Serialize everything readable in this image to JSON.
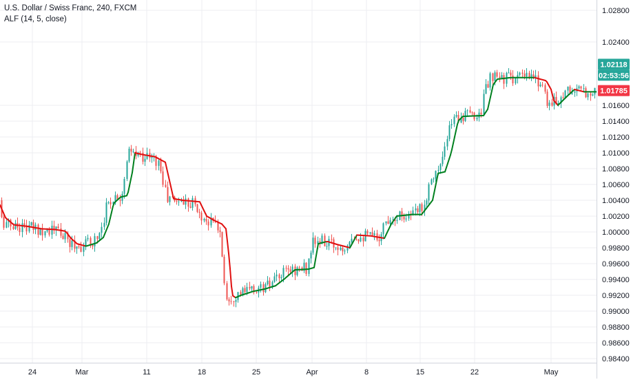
{
  "chart_data": {
    "type": "candlestick",
    "title": "U.S. Dollar / Swiss Franc, 240, FXCM",
    "indicator": "ALF (14, 5, close)",
    "ylim": [
      0.9833,
      1.0293
    ],
    "y_ticks": [
      "1.02800",
      "1.02400",
      "1.01600",
      "1.01400",
      "1.01200",
      "1.01000",
      "1.00800",
      "1.00600",
      "1.00400",
      "1.00200",
      "1.00000",
      "0.99800",
      "0.99600",
      "0.99400",
      "0.99200",
      "0.99000",
      "0.98800",
      "0.98600",
      "0.98400"
    ],
    "x_ticks": [
      "24",
      "Mar",
      "11",
      "18",
      "25",
      "Apr",
      "8",
      "15",
      "22",
      "May"
    ],
    "grid": true,
    "price_labels": [
      {
        "text": "1.02118",
        "value": 1.02118,
        "color": "#26a69a"
      },
      {
        "text": "02:53:56",
        "value": 1.0198,
        "color": "#26a69a"
      },
      {
        "text": "1.01785",
        "value": 1.01785,
        "color": "#f23645"
      }
    ],
    "up_color": "#26a69a",
    "down_color": "#ef5350",
    "alf_rising_color": "#00801f",
    "alf_falling_color": "#e01010",
    "alf_anchors": [
      [
        0,
        1.0034
      ],
      [
        8,
        1.0018
      ],
      [
        20,
        1.0009
      ],
      [
        40,
        1.0007
      ],
      [
        60,
        1.0004
      ],
      [
        80,
        1.0003
      ],
      [
        95,
        1.0001
      ],
      [
        103,
        0.9992
      ],
      [
        112,
        0.9985
      ],
      [
        125,
        0.9982
      ],
      [
        140,
        0.9986
      ],
      [
        150,
        0.9993
      ],
      [
        158,
        1.001
      ],
      [
        165,
        1.0036
      ],
      [
        175,
        1.0044
      ],
      [
        185,
        1.0046
      ],
      [
        192,
        1.0075
      ],
      [
        196,
        1.01
      ],
      [
        205,
        1.0098
      ],
      [
        225,
        1.0095
      ],
      [
        240,
        1.0088
      ],
      [
        252,
        1.0042
      ],
      [
        265,
        1.004
      ],
      [
        290,
        1.0038
      ],
      [
        300,
        1.002
      ],
      [
        310,
        1.0015
      ],
      [
        322,
        1.001
      ],
      [
        328,
        1.0004
      ],
      [
        333,
        0.9965
      ],
      [
        337,
        0.992
      ],
      [
        342,
        0.9917
      ],
      [
        350,
        0.992
      ],
      [
        368,
        0.9925
      ],
      [
        385,
        0.9928
      ],
      [
        400,
        0.9932
      ],
      [
        412,
        0.994
      ],
      [
        428,
        0.9952
      ],
      [
        448,
        0.9953
      ],
      [
        456,
        0.9955
      ],
      [
        462,
        0.9985
      ],
      [
        475,
        0.9988
      ],
      [
        490,
        0.9984
      ],
      [
        508,
        0.998
      ],
      [
        518,
        0.9996
      ],
      [
        538,
        0.9995
      ],
      [
        558,
        0.9992
      ],
      [
        568,
        1.001
      ],
      [
        576,
        1.002
      ],
      [
        598,
        1.0022
      ],
      [
        612,
        1.0022
      ],
      [
        628,
        1.004
      ],
      [
        636,
        1.0074
      ],
      [
        646,
        1.0076
      ],
      [
        655,
        1.01
      ],
      [
        665,
        1.014
      ],
      [
        672,
        1.0146
      ],
      [
        702,
        1.0147
      ],
      [
        708,
        1.0155
      ],
      [
        716,
        1.0186
      ],
      [
        722,
        1.0193
      ],
      [
        742,
        1.0195
      ],
      [
        776,
        1.0195
      ],
      [
        793,
        1.0191
      ],
      [
        800,
        1.018
      ],
      [
        804,
        1.0166
      ],
      [
        810,
        1.016
      ],
      [
        824,
        1.0172
      ],
      [
        834,
        1.018
      ],
      [
        848,
        1.0177
      ],
      [
        865,
        1.0177
      ]
    ]
  }
}
